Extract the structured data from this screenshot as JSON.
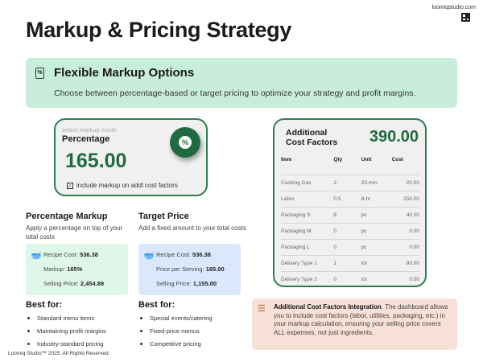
{
  "site": "loomiqstudio.com",
  "title": "Markup & Pricing Strategy",
  "banner": {
    "heading": "Flexible Markup Options",
    "text": "Choose between percentage-based or target pricing to optimize your strategy and profit margins."
  },
  "markup_card": {
    "label": "select markup mode",
    "mode": "Percentage",
    "value": "165.00",
    "badge": "%",
    "checkbox_checked": true,
    "checkbox_label": "include markup on addl cost factors"
  },
  "percentage": {
    "heading": "Percentage Markup",
    "desc": "Apply a percentage on top of your total costs",
    "rows": [
      {
        "k": "Recipe Cost: ",
        "v": "536.38"
      },
      {
        "k": "Markup: ",
        "v": "165%"
      },
      {
        "k": "Selling Price: ",
        "v": "2,454.89"
      }
    ],
    "best_heading": "Best for:",
    "best": [
      "Standard menu items",
      "Maintaining profit margins",
      "Industry-standard pricing"
    ]
  },
  "target": {
    "heading": "Target Price",
    "desc": "Add a fixed amount to your total costs",
    "rows": [
      {
        "k": "Recipe Cost: ",
        "v": "536.38"
      },
      {
        "k": "Price per Serving: ",
        "v": "165.00"
      },
      {
        "k": "Selling Price: ",
        "v": "1,155.00"
      }
    ],
    "best_heading": "Best for:",
    "best": [
      "Special events/catering",
      "Fixed-price menus",
      "Competitive pricing"
    ]
  },
  "cost_factors": {
    "title_line1": "Additional",
    "title_line2": "Cost Factors",
    "total": "390.00",
    "columns": [
      "Item",
      "Qty",
      "Unit",
      "Cost"
    ],
    "rows": [
      [
        "Cooking Gas",
        "2",
        "20-min",
        "20.00"
      ],
      [
        "Labor",
        "0.5",
        "8-hr",
        "250.00"
      ],
      [
        "Packaging S",
        "8",
        "pc",
        "40.00"
      ],
      [
        "Packaging M",
        "0",
        "pc",
        "0.00"
      ],
      [
        "Packaging L",
        "0",
        "pc",
        "0.00"
      ],
      [
        "Delivery Type 1",
        "1",
        "lot",
        "80.00"
      ],
      [
        "Delivery Type 2",
        "0",
        "lot",
        "0.00"
      ]
    ]
  },
  "info": {
    "bold": "Additional Cost Factors Integration",
    "text": ". The dashboard allows you to include cost factors (labor, utilities, packaging, etc.) in your markup calculation, ensuring your selling price covers ALL expenses, not just ingredients."
  },
  "footer": "Loomiq Studio™ 2025. All Rights Reserved.",
  "colors": {
    "accent_green": "#226b3e",
    "banner_bg": "#c8eedb",
    "percent_box": "#dff7e8",
    "target_box": "#dbe8fb",
    "info_bg": "#f7e1d7"
  }
}
